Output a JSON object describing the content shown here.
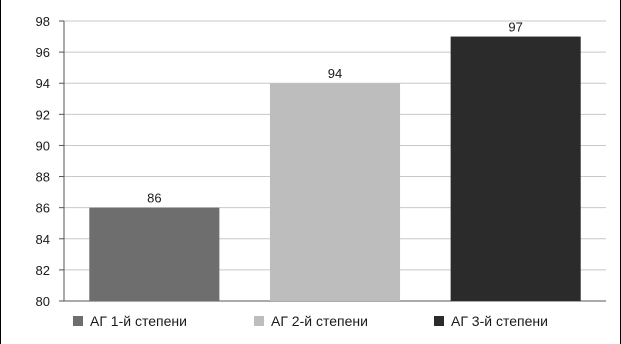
{
  "chart_data": {
    "type": "bar",
    "categories": [
      "АГ 1-й степени",
      "АГ 2-й степени",
      "АГ 3-й степени"
    ],
    "values": [
      86,
      94,
      97
    ],
    "data_labels": [
      "86",
      "94",
      "97"
    ],
    "colors": [
      "#6e6e6e",
      "#bdbdbd",
      "#2b2b2b"
    ],
    "ylim": [
      80,
      98
    ],
    "yticks": [
      80,
      82,
      84,
      86,
      88,
      90,
      92,
      94,
      96,
      98
    ],
    "title": "",
    "xlabel": "",
    "ylabel": "",
    "grid": true,
    "legend_position": "bottom",
    "legend": [
      {
        "label": "АГ 1-й степени",
        "color": "#6e6e6e"
      },
      {
        "label": "АГ 2-й степени",
        "color": "#bdbdbd"
      },
      {
        "label": "АГ 3-й степени",
        "color": "#2b2b2b"
      }
    ]
  }
}
